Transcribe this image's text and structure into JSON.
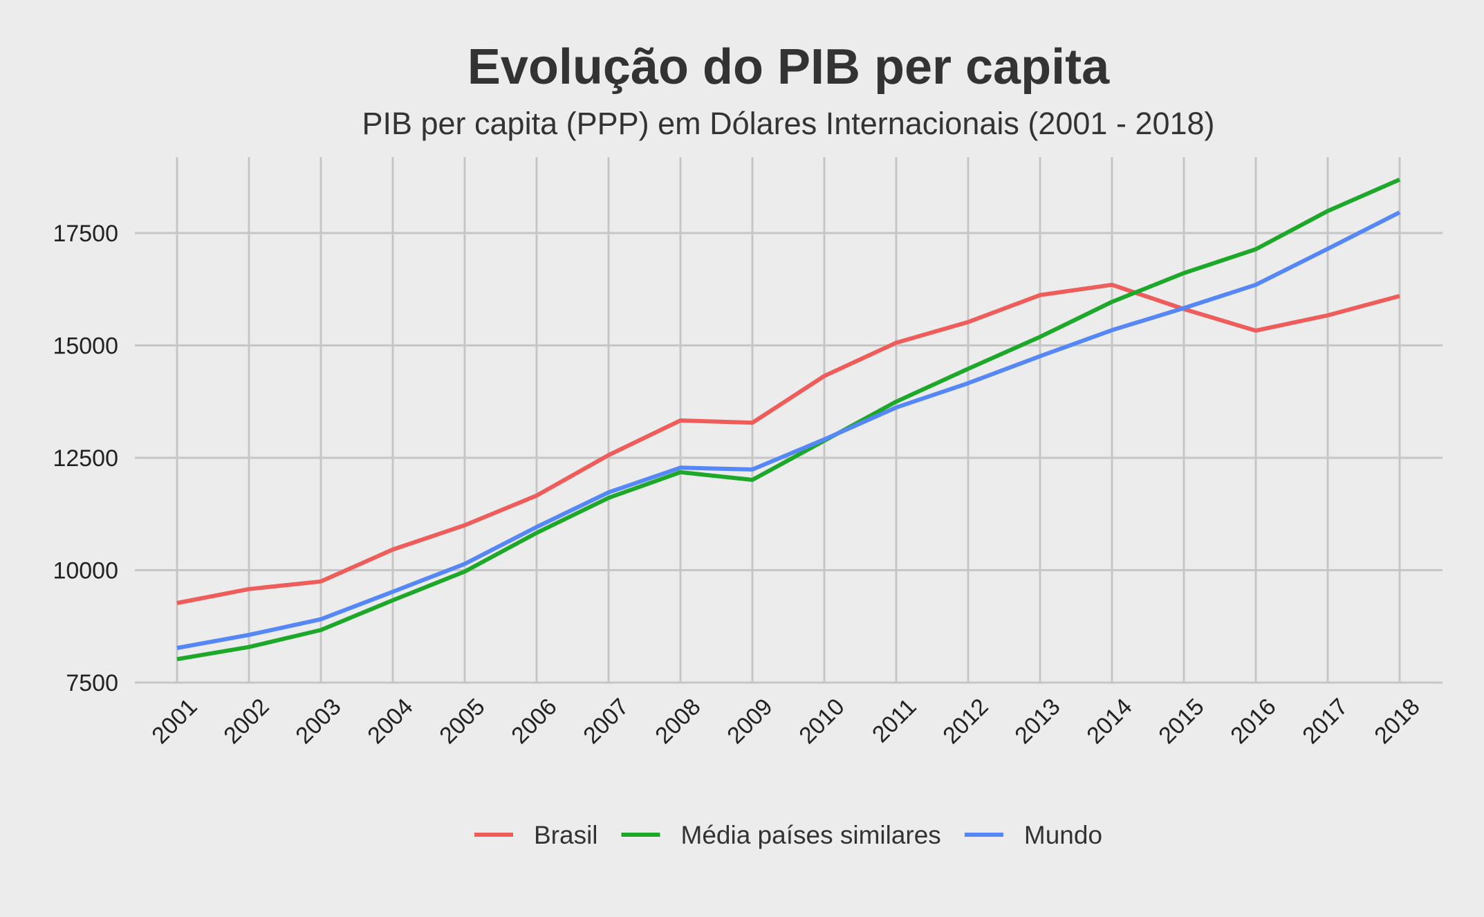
{
  "chart_data": {
    "type": "line",
    "title": "Evolução do PIB per capita",
    "subtitle": "PIB per capita (PPP) em Dólares Internacionais (2001 - 2018)",
    "xlabel": "",
    "ylabel": "",
    "x": [
      "2001",
      "2002",
      "2003",
      "2004",
      "2005",
      "2006",
      "2007",
      "2008",
      "2009",
      "2010",
      "2011",
      "2012",
      "2013",
      "2014",
      "2015",
      "2016",
      "2017",
      "2018"
    ],
    "yticks": [
      7500,
      10000,
      12500,
      15000,
      17500
    ],
    "ylim": [
      7500,
      19200
    ],
    "grid": true,
    "legend_position": "bottom",
    "background_color": "#ececec",
    "grid_color": "#c6c6c6",
    "series": [
      {
        "name": "Brasil",
        "color": "#ee5d5a",
        "values": [
          9270,
          9580,
          9750,
          10460,
          11000,
          11660,
          12560,
          13330,
          13280,
          14320,
          15060,
          15520,
          16120,
          16350,
          15810,
          15330,
          15670,
          16100
        ]
      },
      {
        "name": "Média países similares",
        "color": "#1ea82a",
        "values": [
          8020,
          8290,
          8670,
          9330,
          9970,
          10830,
          11610,
          12180,
          12010,
          12880,
          13750,
          14480,
          15190,
          15970,
          16610,
          17140,
          17990,
          18690
        ]
      },
      {
        "name": "Mundo",
        "color": "#5587f6",
        "values": [
          8270,
          8560,
          8910,
          9520,
          10140,
          10960,
          11730,
          12280,
          12240,
          12910,
          13620,
          14160,
          14760,
          15340,
          15830,
          16350,
          17150,
          17960
        ]
      }
    ]
  }
}
